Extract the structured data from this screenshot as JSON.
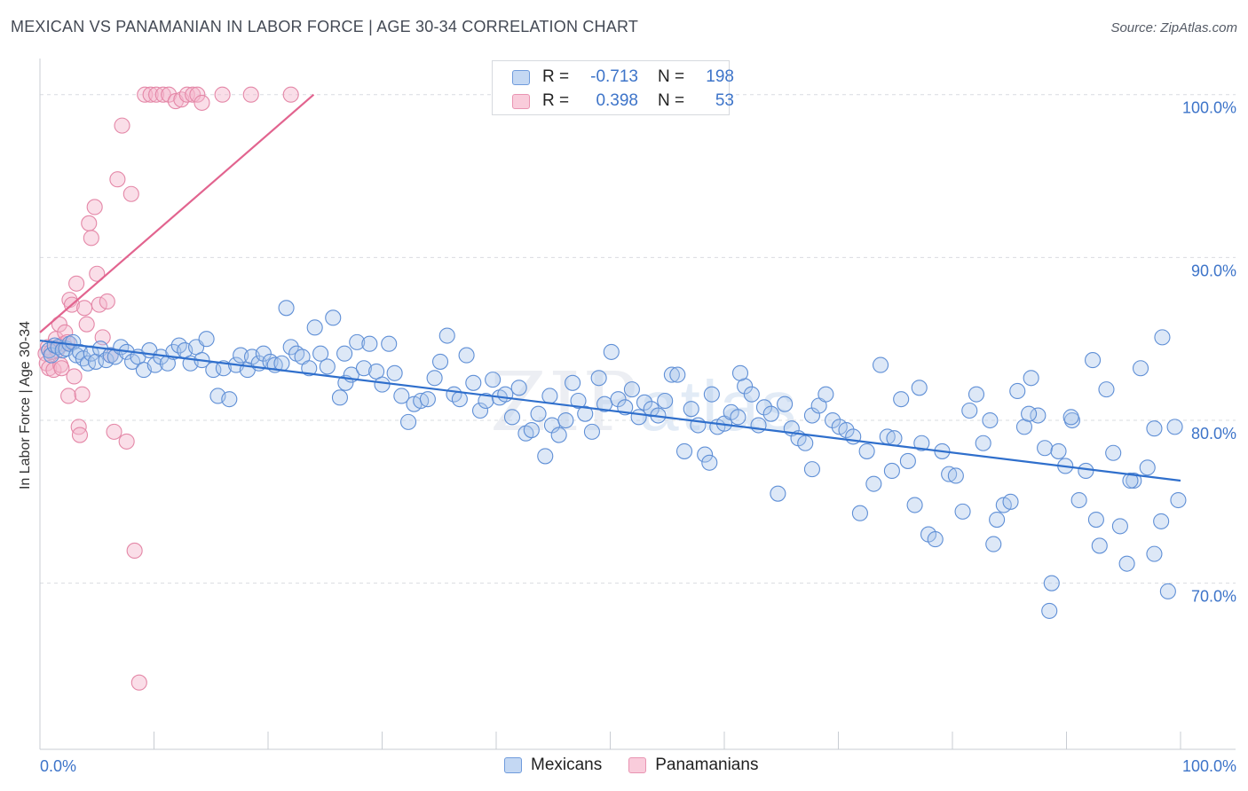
{
  "title": "MEXICAN VS PANAMANIAN IN LABOR FORCE | AGE 30-34 CORRELATION CHART",
  "source": "Source: ZipAtlas.com",
  "watermark": {
    "zip": "ZIP",
    "atlas": "atlas"
  },
  "colors": {
    "mexicans_fill": "#a9c6ec",
    "mexicans_stroke": "#5f8fd6",
    "mexicans_line": "#2f6fcc",
    "panamanians_fill": "#f5b6cb",
    "panamanians_stroke": "#e487a7",
    "panamanians_line": "#e2648f",
    "tick_label": "#3d74c9",
    "grid": "#d9dce1"
  },
  "legend": {
    "rows": [
      {
        "series": "Mexicans",
        "r_label": "R =",
        "r_value": "-0.713",
        "n_label": "N =",
        "n_value": "198"
      },
      {
        "series": "Panamanians",
        "r_label": "R =",
        "r_value": "0.398",
        "n_label": "N =",
        "n_value": "53"
      }
    ]
  },
  "chart_data": {
    "type": "scatter",
    "title": "MEXICAN VS PANAMANIAN IN LABOR FORCE | AGE 30-34 CORRELATION CHART",
    "xlabel": "",
    "ylabel": "In Labor Force | Age 30-34",
    "xlim": [
      0,
      100
    ],
    "ylim": [
      59.8,
      102
    ],
    "x_tick_labels": [
      "0.0%",
      "100.0%"
    ],
    "y_ticks": [
      70,
      80,
      90,
      100
    ],
    "y_tick_labels": [
      "70.0%",
      "80.0%",
      "90.0%",
      "100.0%"
    ],
    "grid": "horizontal dashed",
    "legend_position": "top-center and bottom",
    "series": [
      {
        "name": "Mexicans",
        "r": -0.713,
        "n": 198,
        "trend": {
          "x": [
            0,
            100
          ],
          "y": [
            84.9,
            76.3
          ]
        },
        "points": [
          [
            0.8,
            84.3
          ],
          [
            1.0,
            84.0
          ],
          [
            1.3,
            84.6
          ],
          [
            1.6,
            84.5
          ],
          [
            2.0,
            84.3
          ],
          [
            2.3,
            84.4
          ],
          [
            2.6,
            84.7
          ],
          [
            2.9,
            84.8
          ],
          [
            3.2,
            84.0
          ],
          [
            3.5,
            84.2
          ],
          [
            3.8,
            83.8
          ],
          [
            4.2,
            83.5
          ],
          [
            4.5,
            84.1
          ],
          [
            4.9,
            83.6
          ],
          [
            5.3,
            84.4
          ],
          [
            5.8,
            83.7
          ],
          [
            6.2,
            84.0
          ],
          [
            6.6,
            83.9
          ],
          [
            7.1,
            84.5
          ],
          [
            7.6,
            84.2
          ],
          [
            8.1,
            83.6
          ],
          [
            8.6,
            83.9
          ],
          [
            9.1,
            83.1
          ],
          [
            9.6,
            84.3
          ],
          [
            10.1,
            83.4
          ],
          [
            10.6,
            83.9
          ],
          [
            11.2,
            83.5
          ],
          [
            11.7,
            84.2
          ],
          [
            12.2,
            84.6
          ],
          [
            12.7,
            84.3
          ],
          [
            13.2,
            83.5
          ],
          [
            13.7,
            84.5
          ],
          [
            14.2,
            83.7
          ],
          [
            14.6,
            85.0
          ],
          [
            15.2,
            83.1
          ],
          [
            15.6,
            81.5
          ],
          [
            16.1,
            83.2
          ],
          [
            16.6,
            81.3
          ],
          [
            17.2,
            83.4
          ],
          [
            17.6,
            84.0
          ],
          [
            18.2,
            83.1
          ],
          [
            18.6,
            83.9
          ],
          [
            19.2,
            83.5
          ],
          [
            19.6,
            84.1
          ],
          [
            20.2,
            83.6
          ],
          [
            20.6,
            83.4
          ],
          [
            21.2,
            83.5
          ],
          [
            21.6,
            86.9
          ],
          [
            22.0,
            84.5
          ],
          [
            22.5,
            84.1
          ],
          [
            23.0,
            83.9
          ],
          [
            23.6,
            83.2
          ],
          [
            24.1,
            85.7
          ],
          [
            24.6,
            84.1
          ],
          [
            25.2,
            83.3
          ],
          [
            25.7,
            86.3
          ],
          [
            26.3,
            81.4
          ],
          [
            26.8,
            82.3
          ],
          [
            27.3,
            82.8
          ],
          [
            27.8,
            84.8
          ],
          [
            28.4,
            83.2
          ],
          [
            28.9,
            84.7
          ],
          [
            29.5,
            83.0
          ],
          [
            30.0,
            82.2
          ],
          [
            30.6,
            84.7
          ],
          [
            31.1,
            82.9
          ],
          [
            31.7,
            81.5
          ],
          [
            32.3,
            79.9
          ],
          [
            32.8,
            81.0
          ],
          [
            33.4,
            81.2
          ],
          [
            34.0,
            81.3
          ],
          [
            34.6,
            82.6
          ],
          [
            35.1,
            83.6
          ],
          [
            35.7,
            85.2
          ],
          [
            36.3,
            81.6
          ],
          [
            36.8,
            81.3
          ],
          [
            37.4,
            84.0
          ],
          [
            38.0,
            82.3
          ],
          [
            38.6,
            80.6
          ],
          [
            39.1,
            81.2
          ],
          [
            39.7,
            82.5
          ],
          [
            40.3,
            81.4
          ],
          [
            40.8,
            81.6
          ],
          [
            41.4,
            80.2
          ],
          [
            42.0,
            82.0
          ],
          [
            42.6,
            79.2
          ],
          [
            43.1,
            79.4
          ],
          [
            43.7,
            80.4
          ],
          [
            44.3,
            77.8
          ],
          [
            44.9,
            79.7
          ],
          [
            45.5,
            79.1
          ],
          [
            46.1,
            80.0
          ],
          [
            46.7,
            82.3
          ],
          [
            47.2,
            81.2
          ],
          [
            47.8,
            80.4
          ],
          [
            48.4,
            79.3
          ],
          [
            49.0,
            82.6
          ],
          [
            49.5,
            81.0
          ],
          [
            50.1,
            84.2
          ],
          [
            50.7,
            81.3
          ],
          [
            51.3,
            80.8
          ],
          [
            51.9,
            81.9
          ],
          [
            52.5,
            80.2
          ],
          [
            53.0,
            81.1
          ],
          [
            53.6,
            80.7
          ],
          [
            54.2,
            80.3
          ],
          [
            54.8,
            81.2
          ],
          [
            55.4,
            82.8
          ],
          [
            55.9,
            82.8
          ],
          [
            56.5,
            78.1
          ],
          [
            57.1,
            80.7
          ],
          [
            57.7,
            79.7
          ],
          [
            58.3,
            77.9
          ],
          [
            58.9,
            81.6
          ],
          [
            59.4,
            79.6
          ],
          [
            60.0,
            79.8
          ],
          [
            60.6,
            80.5
          ],
          [
            61.2,
            80.2
          ],
          [
            61.8,
            82.1
          ],
          [
            62.4,
            81.6
          ],
          [
            63.0,
            79.7
          ],
          [
            63.5,
            80.8
          ],
          [
            64.1,
            80.4
          ],
          [
            64.7,
            75.5
          ],
          [
            65.3,
            81.0
          ],
          [
            65.9,
            79.5
          ],
          [
            66.5,
            78.9
          ],
          [
            67.1,
            78.6
          ],
          [
            67.7,
            80.3
          ],
          [
            68.3,
            80.9
          ],
          [
            68.9,
            81.6
          ],
          [
            69.5,
            80.0
          ],
          [
            70.1,
            79.6
          ],
          [
            70.7,
            79.4
          ],
          [
            71.3,
            79.0
          ],
          [
            71.9,
            74.3
          ],
          [
            72.5,
            78.1
          ],
          [
            73.1,
            76.1
          ],
          [
            73.7,
            83.4
          ],
          [
            74.3,
            79.0
          ],
          [
            74.9,
            78.9
          ],
          [
            75.5,
            81.3
          ],
          [
            76.1,
            77.5
          ],
          [
            76.7,
            74.8
          ],
          [
            77.3,
            78.6
          ],
          [
            77.9,
            73.0
          ],
          [
            78.5,
            72.7
          ],
          [
            79.1,
            78.1
          ],
          [
            79.7,
            76.7
          ],
          [
            80.3,
            76.6
          ],
          [
            80.9,
            74.4
          ],
          [
            81.5,
            80.6
          ],
          [
            82.1,
            81.6
          ],
          [
            82.7,
            78.6
          ],
          [
            83.3,
            80.0
          ],
          [
            83.9,
            73.9
          ],
          [
            84.5,
            74.8
          ],
          [
            85.1,
            75.0
          ],
          [
            85.7,
            81.8
          ],
          [
            86.3,
            79.6
          ],
          [
            86.9,
            82.6
          ],
          [
            87.5,
            80.3
          ],
          [
            88.1,
            78.3
          ],
          [
            88.7,
            70.0
          ],
          [
            89.3,
            78.1
          ],
          [
            89.9,
            77.2
          ],
          [
            90.5,
            80.0
          ],
          [
            91.1,
            75.1
          ],
          [
            91.7,
            76.9
          ],
          [
            92.3,
            83.7
          ],
          [
            92.9,
            72.3
          ],
          [
            93.5,
            81.9
          ],
          [
            94.1,
            78.0
          ],
          [
            94.7,
            73.5
          ],
          [
            95.3,
            71.2
          ],
          [
            95.9,
            76.3
          ],
          [
            96.5,
            83.2
          ],
          [
            97.1,
            77.1
          ],
          [
            97.7,
            79.5
          ],
          [
            98.3,
            73.8
          ],
          [
            98.9,
            69.5
          ],
          [
            99.5,
            79.6
          ],
          [
            99.8,
            75.1
          ],
          [
            26.7,
            84.1
          ],
          [
            44.7,
            81.5
          ],
          [
            58.7,
            77.4
          ],
          [
            67.7,
            77.0
          ],
          [
            74.7,
            76.9
          ],
          [
            86.7,
            80.4
          ],
          [
            90.4,
            80.2
          ],
          [
            92.6,
            73.9
          ],
          [
            95.6,
            76.3
          ],
          [
            97.7,
            71.8
          ],
          [
            88.5,
            68.3
          ],
          [
            83.6,
            72.4
          ],
          [
            61.4,
            82.9
          ],
          [
            77.1,
            82.0
          ],
          [
            98.4,
            85.1
          ]
        ]
      },
      {
        "name": "Panamanians",
        "r": 0.398,
        "n": 53,
        "trend": {
          "x": [
            0,
            24
          ],
          "y": [
            85.4,
            100
          ]
        },
        "points": [
          [
            0.5,
            84.1
          ],
          [
            0.6,
            83.5
          ],
          [
            0.7,
            84.5
          ],
          [
            0.8,
            83.2
          ],
          [
            1.0,
            84.2
          ],
          [
            1.2,
            83.1
          ],
          [
            1.4,
            85.0
          ],
          [
            1.5,
            84.3
          ],
          [
            1.7,
            85.9
          ],
          [
            1.8,
            83.4
          ],
          [
            1.9,
            83.2
          ],
          [
            2.1,
            84.7
          ],
          [
            2.2,
            85.4
          ],
          [
            2.4,
            84.8
          ],
          [
            2.5,
            81.5
          ],
          [
            2.6,
            87.4
          ],
          [
            2.8,
            87.1
          ],
          [
            3.0,
            82.7
          ],
          [
            3.2,
            88.4
          ],
          [
            3.4,
            79.6
          ],
          [
            3.5,
            79.1
          ],
          [
            3.7,
            81.6
          ],
          [
            3.9,
            86.9
          ],
          [
            4.1,
            85.9
          ],
          [
            4.3,
            92.1
          ],
          [
            4.5,
            91.2
          ],
          [
            4.8,
            93.1
          ],
          [
            5.0,
            89.0
          ],
          [
            5.2,
            87.1
          ],
          [
            5.5,
            85.1
          ],
          [
            5.9,
            87.3
          ],
          [
            6.2,
            84.0
          ],
          [
            6.5,
            79.3
          ],
          [
            6.8,
            94.8
          ],
          [
            7.2,
            98.1
          ],
          [
            7.6,
            78.7
          ],
          [
            8.0,
            93.9
          ],
          [
            8.3,
            72.0
          ],
          [
            8.7,
            63.9
          ],
          [
            9.2,
            100.0
          ],
          [
            9.7,
            100.0
          ],
          [
            10.2,
            100.0
          ],
          [
            10.8,
            100.0
          ],
          [
            11.3,
            100.0
          ],
          [
            11.9,
            99.6
          ],
          [
            12.4,
            99.7
          ],
          [
            12.9,
            100.0
          ],
          [
            13.4,
            100.0
          ],
          [
            13.8,
            100.0
          ],
          [
            14.2,
            99.5
          ],
          [
            16.0,
            100.0
          ],
          [
            18.5,
            100.0
          ],
          [
            22.0,
            100.0
          ]
        ]
      }
    ]
  }
}
